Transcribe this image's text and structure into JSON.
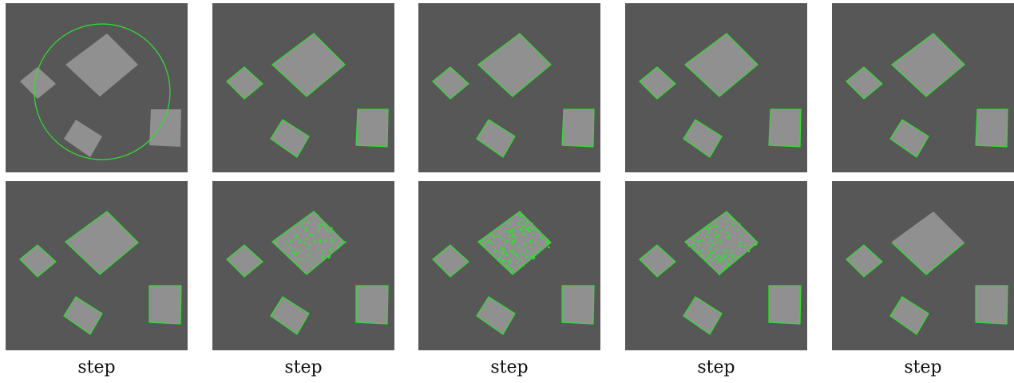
{
  "captions": [
    "step",
    "step",
    "step",
    "step",
    "step"
  ],
  "colors": {
    "background": "#575757",
    "square_fill": "#9a9a9a",
    "contour": "#2fe02f"
  }
}
